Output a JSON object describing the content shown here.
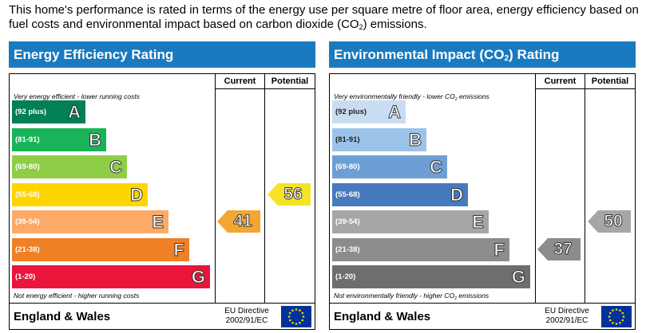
{
  "intro": {
    "before_sub": "This home's performance is rated in terms of the energy use per square metre of floor area, energy efficiency based on fuel costs and environmental impact based on carbon dioxide (CO",
    "sub": "2",
    "after_sub": ") emissions."
  },
  "chart_data": [
    {
      "type": "bar",
      "title": "Energy Efficiency Rating",
      "columns": [
        "Current",
        "Potential"
      ],
      "top_label": "Very energy efficient - lower running costs",
      "bottom_label": "Not energy efficient - higher running costs",
      "categories": [
        "A",
        "B",
        "C",
        "D",
        "E",
        "F",
        "G"
      ],
      "ranges": [
        "(92 plus)",
        "(81-91)",
        "(69-80)",
        "(55-68)",
        "(39-54)",
        "(21-38)",
        "(1-20)"
      ],
      "colors": [
        "#008054",
        "#19b459",
        "#8dce46",
        "#ffd500",
        "#fcaa65",
        "#ef8023",
        "#e9153b"
      ],
      "current": {
        "value": 41,
        "band": "E",
        "color": "#f3a630"
      },
      "potential": {
        "value": 56,
        "band": "D",
        "color": "#f5e426"
      },
      "region": "England & Wales",
      "directive": [
        "EU Directive",
        "2002/91/EC"
      ]
    },
    {
      "type": "bar",
      "title": "Environmental Impact (CO",
      "title_sub": "2",
      "title_after": ") Rating",
      "columns": [
        "Current",
        "Potential"
      ],
      "top_label": "Very environmentally friendly - lower CO",
      "top_label_sub": "2",
      "top_label_after": " emissions",
      "bottom_label": "Not environmentally friendly - higher CO",
      "bottom_label_sub": "2",
      "bottom_label_after": " emissions",
      "categories": [
        "A",
        "B",
        "C",
        "D",
        "E",
        "F",
        "G"
      ],
      "ranges": [
        "(92 plus)",
        "(81-91)",
        "(69-80)",
        "(55-68)",
        "(39-54)",
        "(21-38)",
        "(1-20)"
      ],
      "colors": [
        "#c9ddf2",
        "#9bc3ea",
        "#6d9fd5",
        "#4779be",
        "#a6a6a6",
        "#8c8c8c",
        "#6e6e6e"
      ],
      "current": {
        "value": 37,
        "band": "F",
        "color": "#8c8c8c"
      },
      "potential": {
        "value": 50,
        "band": "E",
        "color": "#a6a6a6"
      },
      "region": "England & Wales",
      "directive": [
        "EU Directive",
        "2002/91/EC"
      ]
    }
  ]
}
